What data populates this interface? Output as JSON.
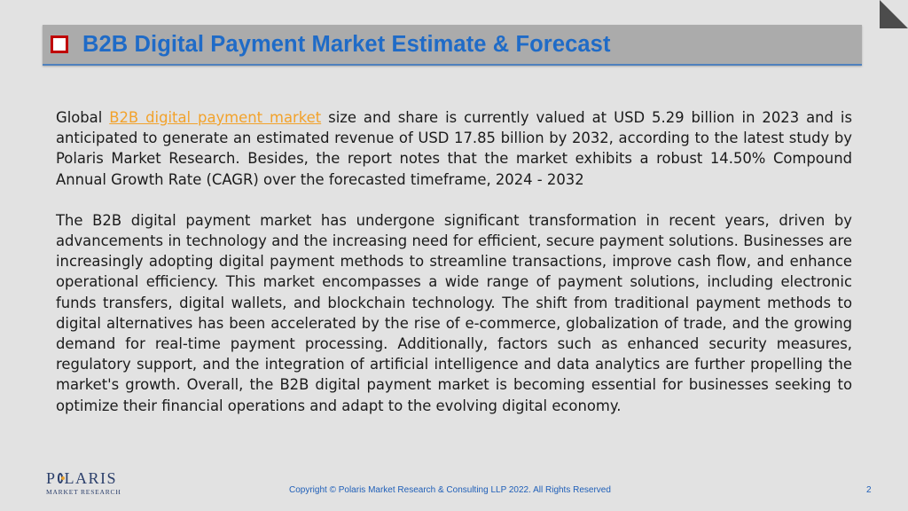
{
  "header": {
    "title": "B2B Digital Payment Market Estimate & Forecast"
  },
  "body": {
    "p1_pre": "Global ",
    "p1_link": "B2B digital payment market",
    "p1_post": " size and share is currently valued at USD 5.29 billion in 2023 and is anticipated to generate an estimated revenue of USD 17.85 billion by 2032, according to the latest study by Polaris Market Research. Besides, the report notes that the market exhibits a robust 14.50% Compound Annual Growth Rate (CAGR) over the forecasted timeframe, 2024 - 2032",
    "p2": "The B2B digital payment market has undergone significant transformation in recent years, driven by advancements in technology and the increasing need for efficient, secure payment solutions. Businesses are increasingly adopting digital payment methods to streamline transactions, improve cash flow, and enhance operational efficiency. This market encompasses a wide range of payment solutions, including electronic funds transfers, digital wallets, and blockchain technology. The shift from traditional payment methods to digital alternatives has been accelerated by the rise of e-commerce, globalization of trade, and the growing demand for real-time payment processing. Additionally, factors such as enhanced security measures, regulatory support, and the integration of artificial intelligence and data analytics are further propelling the market's growth. Overall, the B2B digital payment market is becoming essential for businesses seeking to optimize their financial operations and adapt to the evolving digital economy."
  },
  "footer": {
    "logo_main_p": "P",
    "logo_main_rest": "LARIS",
    "logo_sub": "MARKET RESEARCH",
    "copyright": "Copyright © Polaris Market Research & Consulting LLP 2022. All Rights Reserved",
    "page_number": "2"
  },
  "colors": {
    "title": "#1f6bc7",
    "bullet": "#c00000",
    "link": "#f2a22b",
    "footer_text": "#1f5fb8"
  },
  "icons": {
    "bullet": "checkbox-bullet-icon",
    "corner": "page-corner-fold-icon",
    "logo": "polaris-logo"
  }
}
